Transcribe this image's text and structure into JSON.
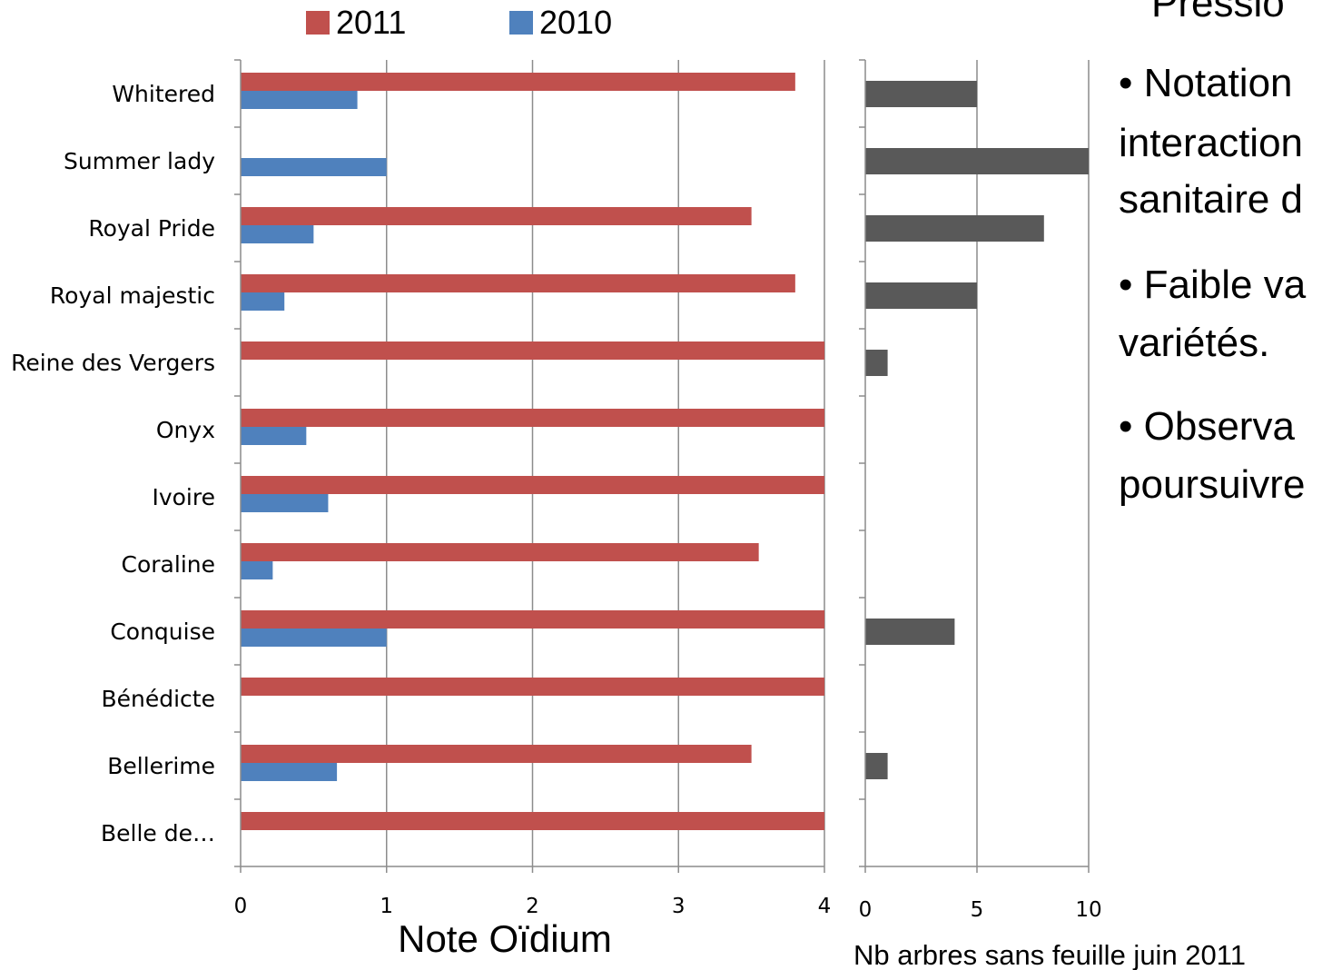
{
  "chart_data": [
    {
      "type": "bar",
      "orientation": "horizontal",
      "categories": [
        "Whitered",
        "Summer lady",
        "Royal Pride",
        "Royal majestic",
        "Reine des Vergers",
        "Onyx",
        "Ivoire",
        "Coraline",
        "Conquise",
        "Bénédicte",
        "Bellerime",
        "Belle de…"
      ],
      "series": [
        {
          "name": "2011",
          "color": "#c0504d",
          "values": [
            3.8,
            null,
            3.5,
            3.8,
            4,
            4,
            4,
            3.55,
            4,
            4,
            3.5,
            4
          ]
        },
        {
          "name": "2010",
          "color": "#4f81bd",
          "values": [
            0.8,
            1.0,
            0.5,
            0.3,
            null,
            0.45,
            0.6,
            0.22,
            1.0,
            null,
            0.66,
            null
          ]
        }
      ],
      "xlabel": "Note Oïdium",
      "xlim": [
        0,
        4
      ],
      "xticks": [
        "0",
        "1",
        "2",
        "3",
        "4"
      ],
      "grid": true,
      "legend": "top"
    },
    {
      "type": "bar",
      "orientation": "horizontal",
      "categories": [
        "Whitered",
        "Summer lady",
        "Royal Pride",
        "Royal majestic",
        "Reine des Vergers",
        "Onyx",
        "Ivoire",
        "Coraline",
        "Conquise",
        "Bénédicte",
        "Bellerime",
        "Belle de…"
      ],
      "series": [
        {
          "color": "#595959",
          "values": [
            5,
            10,
            8,
            5,
            1,
            0,
            0,
            0,
            4,
            0,
            1,
            0
          ]
        }
      ],
      "xlabel": "Nb arbres sans feuille juin 2011",
      "xlim": [
        0,
        10
      ],
      "xticks": [
        "0",
        "5",
        "10"
      ],
      "grid": true
    }
  ],
  "bullets": {
    "line1": "Pressio",
    "line2": "• Notation",
    "line3": "interaction",
    "line4": "sanitaire d",
    "line5": "• Faible va",
    "line6": "variétés.",
    "line7": "• Observa",
    "line8": "poursuivre"
  }
}
